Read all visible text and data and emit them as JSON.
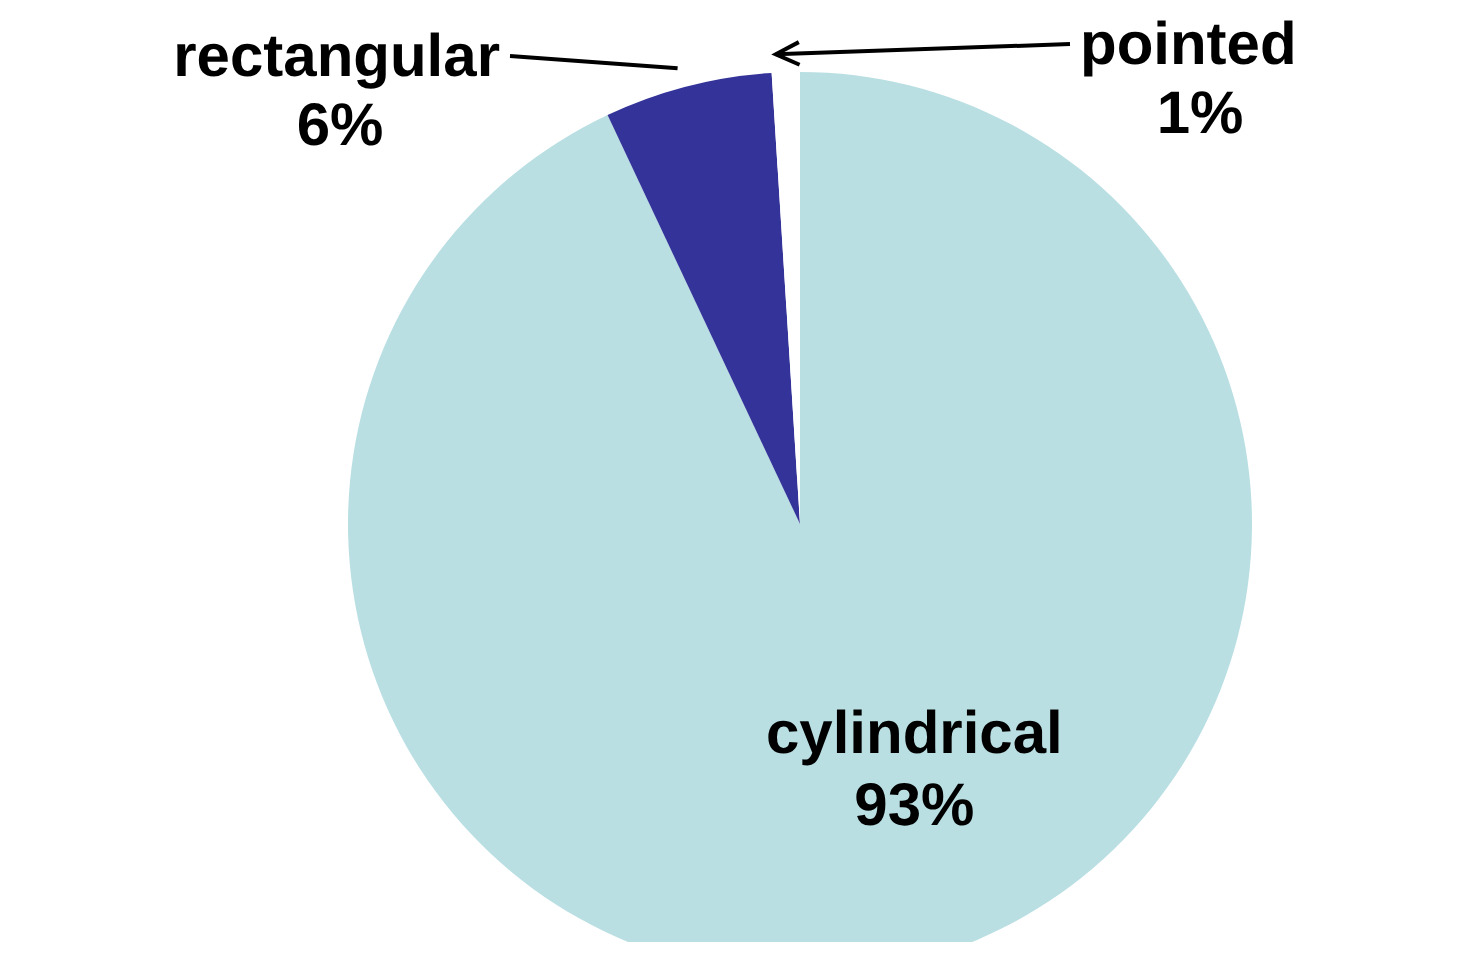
{
  "chart_data": {
    "type": "pie",
    "categories": [
      "cylindrical",
      "rectangular",
      "pointed"
    ],
    "values": [
      93,
      6,
      1
    ],
    "value_labels": [
      "93%",
      "6%",
      "1%"
    ],
    "colors": [
      "#b9dfe3",
      "#333399",
      "#ffffff"
    ],
    "legend": false
  }
}
